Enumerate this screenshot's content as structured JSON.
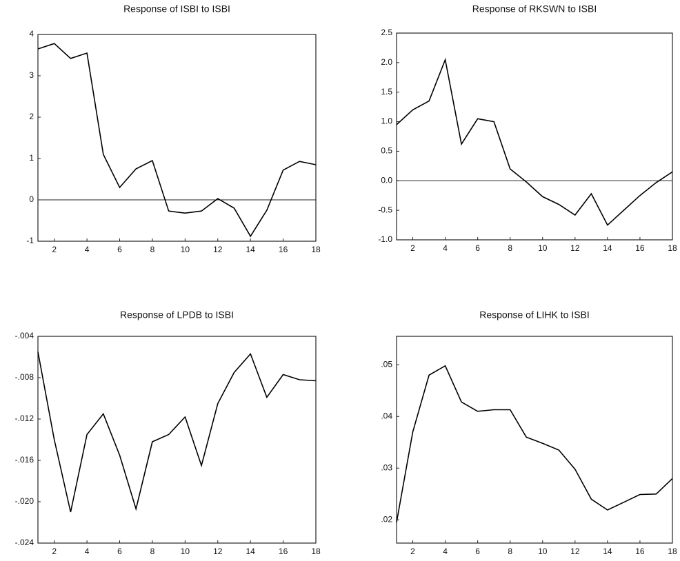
{
  "chart_data": [
    {
      "type": "line",
      "title": "Response of ISBI to ISBI",
      "color": "#000000",
      "zero_line": true,
      "x": [
        1,
        2,
        3,
        4,
        5,
        6,
        7,
        8,
        9,
        10,
        11,
        12,
        13,
        14,
        15,
        16,
        17,
        18
      ],
      "values": [
        3.65,
        3.78,
        3.42,
        3.55,
        1.1,
        0.3,
        0.75,
        0.95,
        -0.27,
        -0.32,
        -0.27,
        0.03,
        -0.2,
        -0.88,
        -0.25,
        0.72,
        0.93,
        0.85
      ],
      "xlim": [
        1,
        18
      ],
      "xticks": [
        2,
        4,
        6,
        8,
        10,
        12,
        14,
        16,
        18
      ],
      "ylim": [
        -1,
        4
      ],
      "yticks": [
        -1,
        0,
        1,
        2,
        3,
        4
      ]
    },
    {
      "type": "line",
      "title": "Response of RKSWN to ISBI",
      "color": "#000000",
      "zero_line": true,
      "x": [
        1,
        2,
        3,
        4,
        5,
        6,
        7,
        8,
        9,
        10,
        11,
        12,
        13,
        14,
        15,
        16,
        17,
        18
      ],
      "values": [
        0.95,
        1.2,
        1.35,
        2.05,
        0.62,
        1.05,
        1.0,
        0.2,
        -0.02,
        -0.27,
        -0.4,
        -0.58,
        -0.22,
        -0.75,
        -0.5,
        -0.25,
        -0.03,
        0.15
      ],
      "xlim": [
        1,
        18
      ],
      "xticks": [
        2,
        4,
        6,
        8,
        10,
        12,
        14,
        16,
        18
      ],
      "ylim": [
        -1,
        2.5
      ],
      "yticks": [
        {
          "value": -1,
          "label": "-1.0"
        },
        -0.5,
        {
          "value": 0,
          "label": "0.0"
        },
        0.5,
        {
          "value": 1,
          "label": "1.0"
        },
        1.5,
        {
          "value": 2,
          "label": "2.0"
        },
        2.5
      ]
    },
    {
      "type": "line",
      "title": "Response of LPDB to ISBI",
      "color": "#000000",
      "zero_line": false,
      "x": [
        1,
        2,
        3,
        4,
        5,
        6,
        7,
        8,
        9,
        10,
        11,
        12,
        13,
        14,
        15,
        16,
        17,
        18
      ],
      "values": [
        -0.0055,
        -0.014,
        -0.021,
        -0.0135,
        -0.0115,
        -0.0155,
        -0.0207,
        -0.0142,
        -0.0135,
        -0.0118,
        -0.0165,
        -0.0105,
        -0.0075,
        -0.0057,
        -0.0099,
        -0.0077,
        -0.0082,
        -0.0083
      ],
      "xlim": [
        1,
        18
      ],
      "xticks": [
        2,
        4,
        6,
        8,
        10,
        12,
        14,
        16,
        18
      ],
      "ylim": [
        -0.024,
        -0.004
      ],
      "yticks": [
        {
          "value": -0.024,
          "label": "-.024"
        },
        {
          "value": -0.02,
          "label": "-.020"
        },
        {
          "value": -0.016,
          "label": "-.016"
        },
        {
          "value": -0.012,
          "label": "-.012"
        },
        {
          "value": -0.008,
          "label": "-.008"
        },
        {
          "value": -0.004,
          "label": "-.004"
        }
      ]
    },
    {
      "type": "line",
      "title": "Response of LIHK to ISBI",
      "color": "#000000",
      "zero_line": false,
      "x": [
        1,
        2,
        3,
        4,
        5,
        6,
        7,
        8,
        9,
        10,
        11,
        12,
        13,
        14,
        15,
        16,
        17,
        18
      ],
      "values": [
        0.0195,
        0.037,
        0.048,
        0.0498,
        0.0428,
        0.041,
        0.0413,
        0.0413,
        0.036,
        0.0348,
        0.0335,
        0.0298,
        0.024,
        0.0219,
        0.0234,
        0.0249,
        0.025,
        0.028
      ],
      "xlim": [
        1,
        18
      ],
      "xticks": [
        2,
        4,
        6,
        8,
        10,
        12,
        14,
        16,
        18
      ],
      "ylim": [
        0.0155,
        0.0555
      ],
      "yticks": [
        {
          "value": 0.02,
          "label": ".02"
        },
        {
          "value": 0.03,
          "label": ".03"
        },
        {
          "value": 0.04,
          "label": ".04"
        },
        {
          "value": 0.05,
          "label": ".05"
        }
      ]
    }
  ]
}
